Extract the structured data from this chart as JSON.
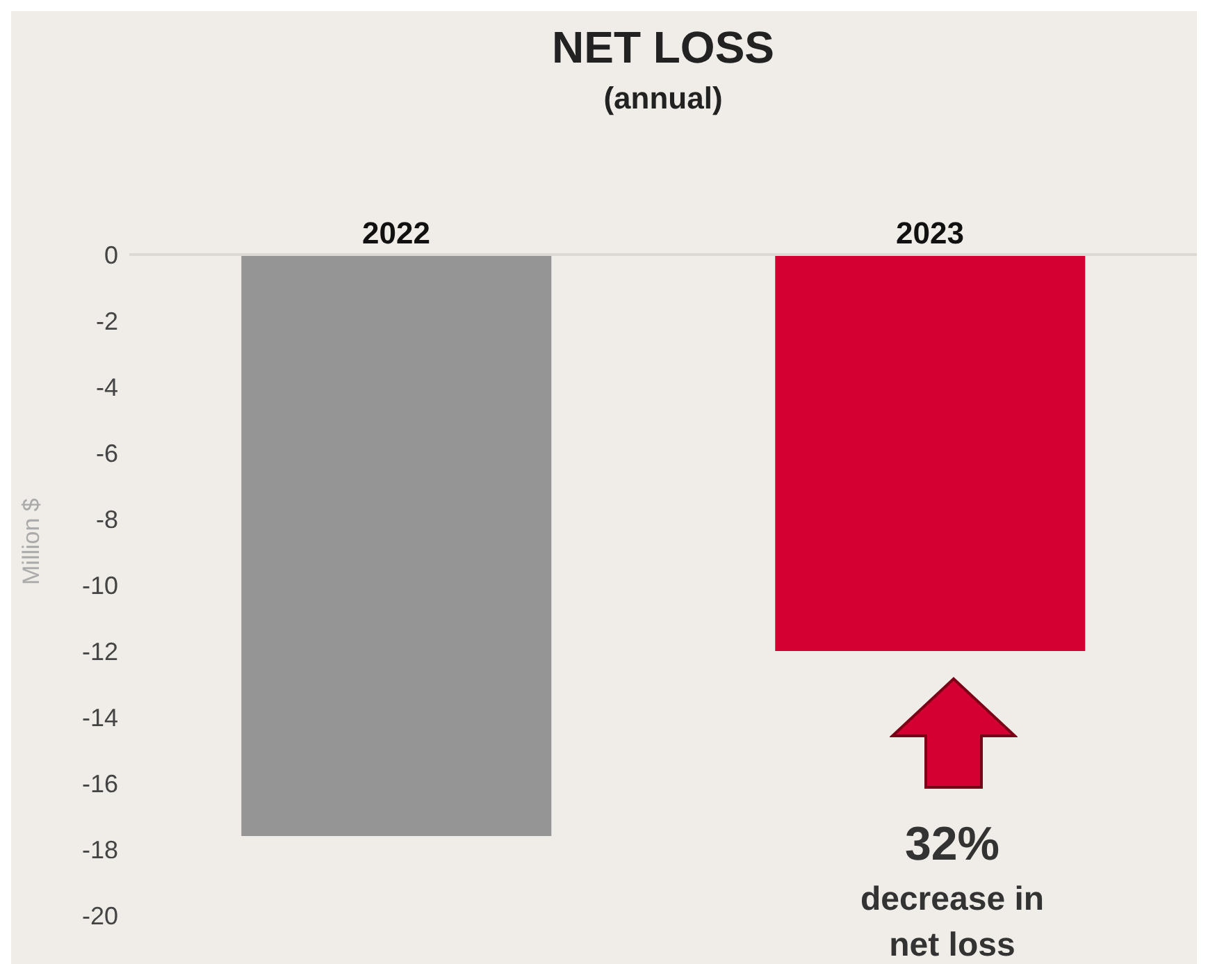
{
  "chart_data": {
    "type": "bar",
    "title": "NET LOSS",
    "subtitle": "(annual)",
    "ylabel": "Million $",
    "categories": [
      "2022",
      "2023"
    ],
    "values": [
      -17.6,
      -12.0
    ],
    "colors": [
      "#959595",
      "#d50032"
    ],
    "ylim": [
      -20,
      0
    ],
    "yticks": [
      0,
      -2,
      -4,
      -6,
      -8,
      -10,
      -12,
      -14,
      -16,
      -18,
      -20
    ],
    "annotations": [
      "32%",
      "decrease in net loss"
    ]
  }
}
